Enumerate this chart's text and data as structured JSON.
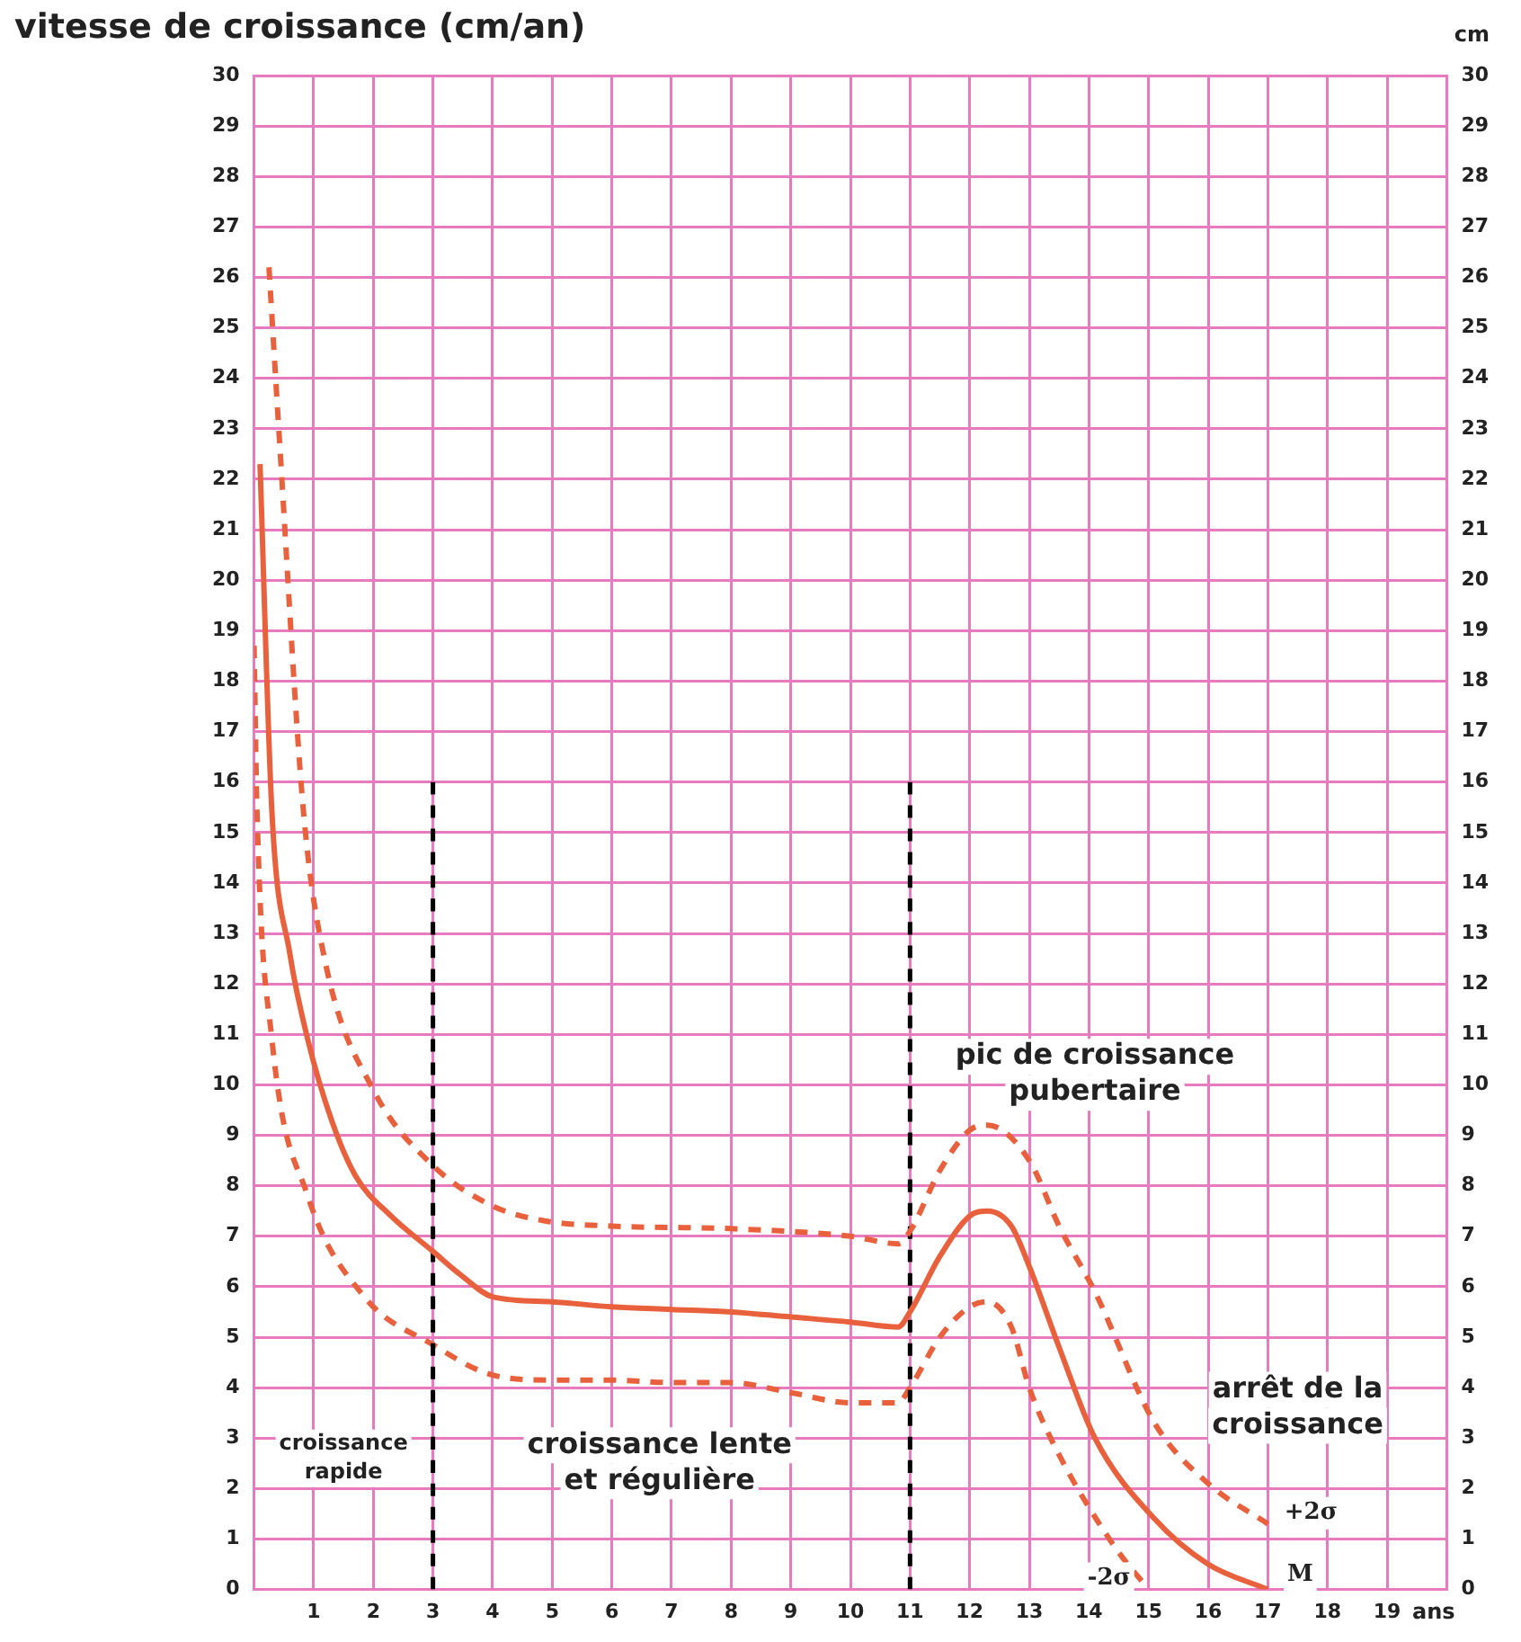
{
  "chart_data": {
    "type": "line",
    "ylabel": "vitesse de croissance (cm/an)",
    "y2label": "cm",
    "xlabel": "ans",
    "xlim": [
      0,
      20
    ],
    "xticks": [
      {
        "value": 0,
        "label": null
      },
      1,
      2,
      3,
      4,
      5,
      6,
      7,
      8,
      9,
      10,
      11,
      12,
      13,
      14,
      15,
      16,
      17,
      18,
      19,
      {
        "value": 20,
        "label": null
      }
    ],
    "ylim": [
      0,
      30
    ],
    "yticks": [
      0,
      1,
      2,
      3,
      4,
      5,
      6,
      7,
      8,
      9,
      10,
      11,
      12,
      13,
      14,
      15,
      16,
      17,
      18,
      19,
      20,
      21,
      22,
      23,
      24,
      25,
      26,
      27,
      28,
      29,
      30
    ],
    "y2lim": [
      0,
      30
    ],
    "y2ticks": [
      0,
      1,
      2,
      3,
      4,
      5,
      6,
      7,
      8,
      9,
      10,
      11,
      12,
      13,
      14,
      15,
      16,
      17,
      18,
      19,
      20,
      21,
      22,
      23,
      24,
      25,
      26,
      27,
      28,
      29,
      30
    ],
    "grid": true,
    "legend": false,
    "series": [
      {
        "name": "M",
        "color": "#e8603c",
        "line_style": "solid",
        "x": [
          0.1,
          0.3,
          0.6,
          0.9,
          1.3,
          1.7,
          2.3,
          3,
          3.5,
          4,
          5,
          6,
          7,
          8,
          9,
          10,
          10.8,
          11,
          11.5,
          12,
          12.3,
          12.7,
          13,
          13.5,
          14.1,
          15.1,
          16,
          17
        ],
        "values": [
          22.3,
          15.4,
          12.6,
          10.9,
          9.3,
          8.2,
          7.4,
          6.7,
          6.2,
          5.8,
          5.7,
          5.6,
          5.55,
          5.5,
          5.4,
          5.3,
          5.2,
          5.5,
          6.6,
          7.4,
          7.5,
          7.2,
          6.4,
          4.8,
          3.0,
          1.4,
          0.5,
          0
        ]
      },
      {
        "name": "+2σ",
        "color": "#e8603c",
        "line_style": "dashed",
        "x": [
          0.25,
          0.43,
          0.83,
          1.2,
          2,
          3,
          4,
          4.9,
          6,
          8,
          10,
          10.8,
          11,
          11.5,
          12,
          12.3,
          13,
          13.5,
          14.1,
          15.1,
          16,
          17
        ],
        "values": [
          26.2,
          22.7,
          15.4,
          12.4,
          9.9,
          8.4,
          7.6,
          7.3,
          7.2,
          7.15,
          7.0,
          6.85,
          7.1,
          8.3,
          9.1,
          9.2,
          8.5,
          7.2,
          5.9,
          3.3,
          2.1,
          1.3
        ]
      },
      {
        "type": "line",
        "color": "#000000",
        "line_style": "dashed",
        "x": [
          3,
          3
        ],
        "values": [
          0,
          16
        ]
      },
      {
        "type": "line",
        "color": "#000000",
        "line_style": "dashed",
        "x": [
          11,
          11
        ],
        "values": [
          0,
          16
        ]
      },
      {
        "name": "-2σ",
        "color": "#e8603c",
        "line_style": "dashed",
        "x": [
          0,
          0.05,
          0.3,
          0.9,
          1.85,
          3,
          4,
          5,
          6,
          7,
          8,
          9,
          10,
          10.8,
          11,
          11.5,
          12,
          12.3,
          12.7,
          13,
          13.4,
          14.4,
          15
        ],
        "values": [
          18.7,
          15.4,
          10.9,
          7.8,
          5.8,
          4.85,
          4.25,
          4.15,
          4.15,
          4.1,
          4.1,
          3.9,
          3.7,
          3.7,
          4.0,
          5.0,
          5.6,
          5.7,
          5.2,
          4.0,
          2.9,
          0.9,
          0
        ]
      }
    ],
    "annotations": [
      "croissance\nrapide",
      "croissance lente\net régulière",
      "pic de croissance\npubertaire",
      "arrêt de la\ncroissance"
    ]
  }
}
